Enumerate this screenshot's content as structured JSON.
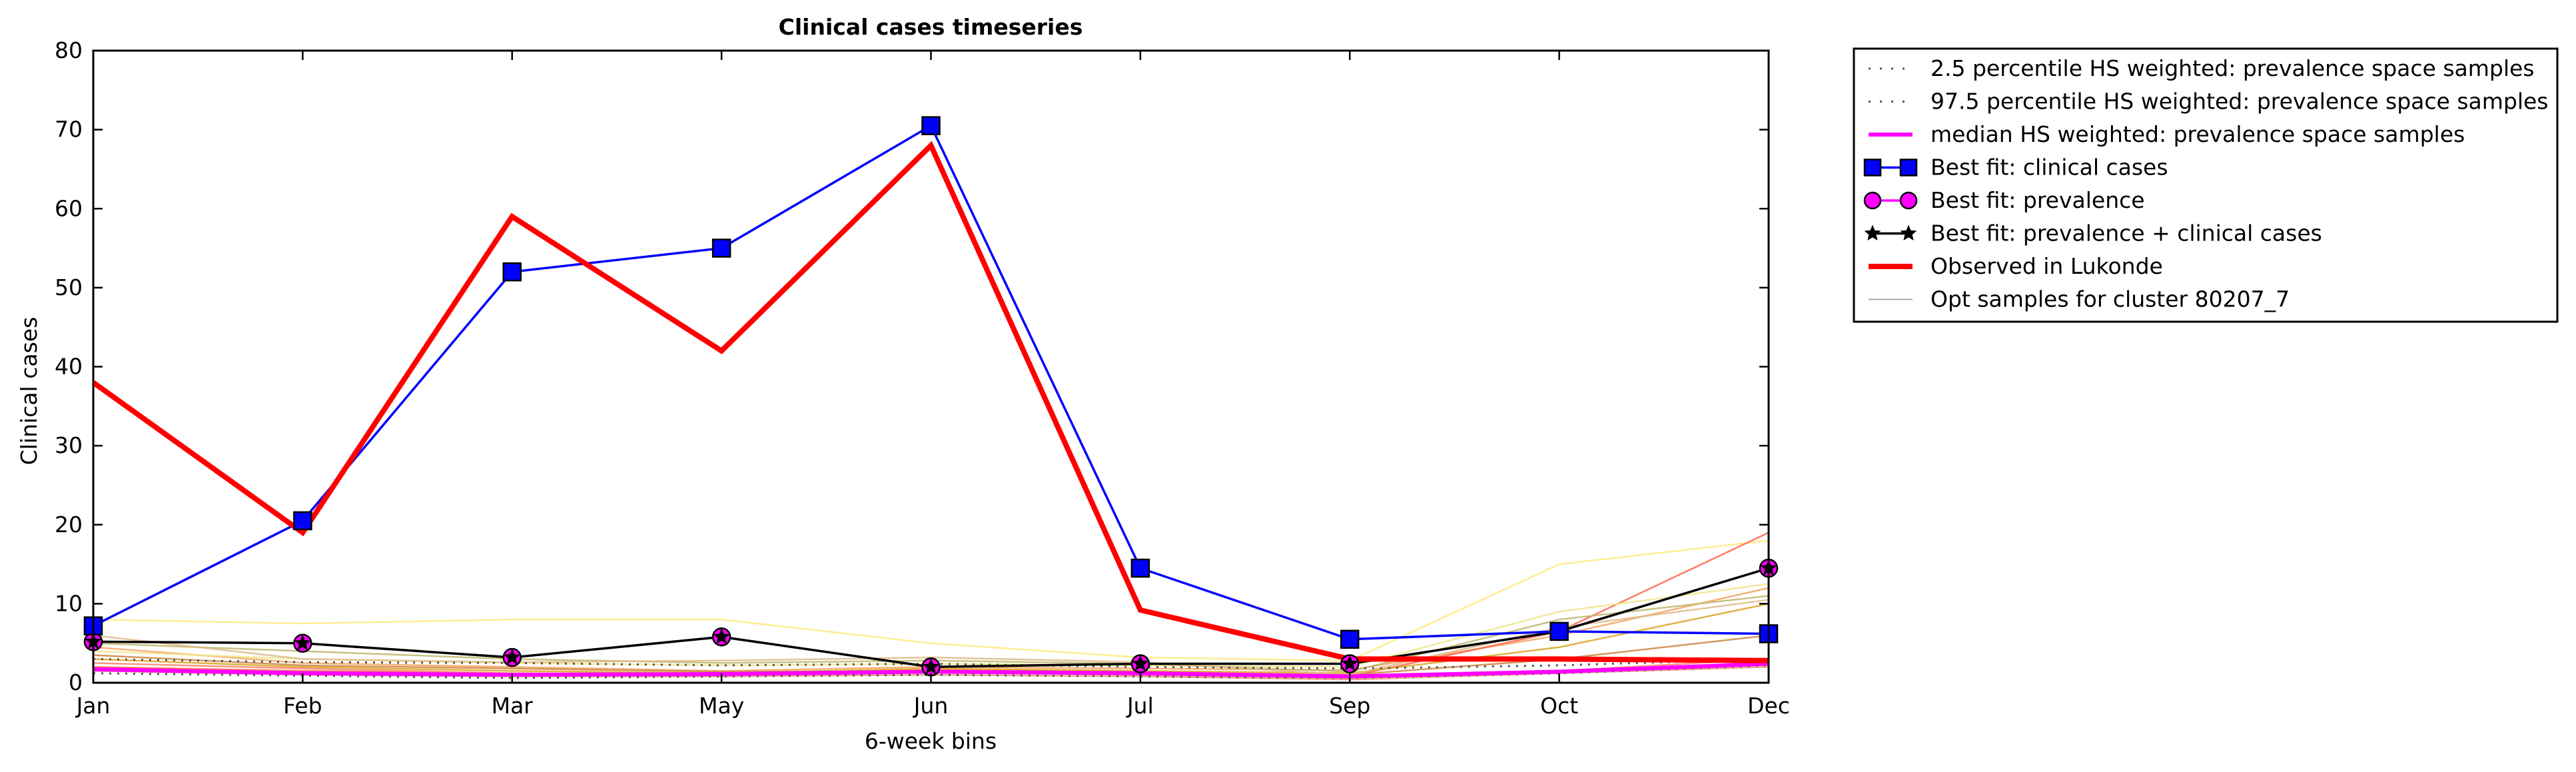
{
  "chart_data": {
    "type": "line",
    "title": "Clinical cases timeseries",
    "xlabel": "6-week bins",
    "ylabel": "Clinical cases",
    "categories": [
      "Jan",
      "Feb",
      "Mar",
      "May",
      "Jun",
      "Jul",
      "Sep",
      "Oct",
      "Dec"
    ],
    "ylim": [
      0,
      80
    ],
    "yticks": [
      "0",
      "10",
      "20",
      "30",
      "40",
      "50",
      "60",
      "70",
      "80"
    ],
    "grid": false,
    "legend_position": "outside-right",
    "series": [
      {
        "name": "2.5 percentile HS weighted: prevalence space samples",
        "color": "#555555",
        "style": "dotted",
        "values": [
          1.2,
          0.9,
          0.6,
          0.8,
          1.0,
          0.8,
          0.6,
          1.2,
          2.2
        ]
      },
      {
        "name": "97.5 percentile HS weighted: prevalence space samples",
        "color": "#555555",
        "style": "dotted",
        "values": [
          3.0,
          2.6,
          2.5,
          2.2,
          2.4,
          2.0,
          1.8,
          2.2,
          3.0
        ]
      },
      {
        "name": "median HS weighted: prevalence space samples",
        "color": "#ff00ff",
        "style": "solid",
        "values": [
          1.7,
          1.2,
          1.0,
          1.1,
          1.4,
          1.2,
          0.8,
          1.4,
          2.4
        ]
      },
      {
        "name": "Best fit: clinical cases",
        "color": "#0000ff",
        "marker": "square",
        "values": [
          7.2,
          20.5,
          52,
          55,
          70.5,
          14.5,
          5.5,
          6.5,
          6.2
        ]
      },
      {
        "name": "Best fit: prevalence",
        "color": "#ff00ff",
        "marker": "circle",
        "values": [
          5.2,
          5.0,
          3.2,
          5.8,
          2.0,
          2.4,
          2.4,
          6.5,
          14.5
        ]
      },
      {
        "name": "Best fit: prevalence + clinical cases",
        "color": "#000000",
        "marker": "star",
        "values": [
          5.2,
          5.0,
          3.2,
          5.8,
          2.0,
          2.4,
          2.4,
          6.5,
          14.5
        ]
      },
      {
        "name": "Observed in Lukonde",
        "color": "#ff0000",
        "style": "thick",
        "values": [
          38,
          19,
          59,
          42,
          68,
          9.2,
          3.0,
          3.0,
          2.8
        ]
      },
      {
        "name": "Opt samples for cluster 80207_7",
        "color": "#aaaaaa",
        "style": "thin",
        "samples": [
          {
            "color": "#ffe97f",
            "values": [
              8.0,
              7.5,
              8.0,
              8.0,
              5.0,
              3.2,
              2.8,
              15.0,
              18.0
            ]
          },
          {
            "color": "#f4a460",
            "values": [
              4.5,
              2.5,
              2.0,
              1.5,
              2.0,
              1.8,
              1.6,
              6.0,
              12.0
            ]
          },
          {
            "color": "#ff6347",
            "values": [
              2.0,
              1.5,
              1.2,
              1.0,
              1.6,
              1.4,
              0.8,
              6.5,
              19.0
            ]
          },
          {
            "color": "#daa520",
            "values": [
              3.0,
              2.0,
              1.5,
              1.2,
              1.8,
              1.5,
              1.2,
              4.5,
              10.0
            ]
          },
          {
            "color": "#cd853f",
            "values": [
              3.5,
              2.2,
              1.8,
              1.4,
              1.5,
              1.2,
              1.0,
              3.0,
              6.0
            ]
          },
          {
            "color": "#fa8072",
            "values": [
              2.5,
              1.8,
              1.2,
              1.0,
              1.4,
              1.0,
              0.6,
              1.5,
              3.0
            ]
          },
          {
            "color": "#f0e68c",
            "values": [
              4.0,
              3.0,
              2.5,
              2.2,
              2.4,
              2.2,
              2.0,
              9.0,
              12.5
            ]
          },
          {
            "color": "#bdb76b",
            "values": [
              5.0,
              4.0,
              3.0,
              2.5,
              2.8,
              2.4,
              1.4,
              8.0,
              11.0
            ]
          },
          {
            "color": "#e9967a",
            "values": [
              1.5,
              1.0,
              0.8,
              0.8,
              1.0,
              0.8,
              0.4,
              1.2,
              2.0
            ]
          },
          {
            "color": "#deb887",
            "values": [
              6.0,
              3.0,
              2.6,
              2.8,
              3.2,
              2.6,
              1.0,
              7.0,
              10.5
            ]
          }
        ]
      }
    ]
  }
}
